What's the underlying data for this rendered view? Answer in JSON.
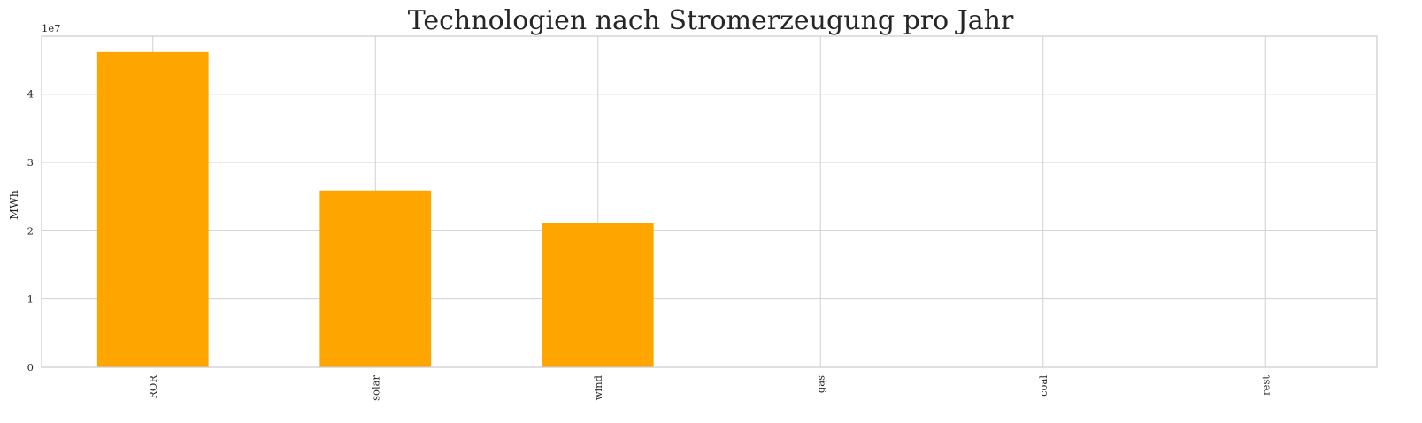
{
  "chart_data": {
    "type": "bar",
    "title": "Technologien nach Stromerzeugung pro Jahr",
    "xlabel": "",
    "ylabel": "MWh",
    "y_offset_label": "1e7",
    "y_scale": 10000000,
    "categories": [
      "ROR",
      "solar",
      "wind",
      "gas",
      "coal",
      "rest"
    ],
    "values": [
      46200000,
      25900000,
      21100000,
      0,
      0,
      0
    ],
    "ylim": [
      0,
      48500000
    ],
    "yticks": [
      0,
      10000000,
      20000000,
      30000000,
      40000000
    ],
    "ytick_labels": [
      "0",
      "1",
      "2",
      "3",
      "4"
    ],
    "grid": true,
    "colors": {
      "bar": "#FFA500",
      "grid": "#d0d0d0",
      "frame": "#cccccc",
      "text": "#262626"
    }
  }
}
